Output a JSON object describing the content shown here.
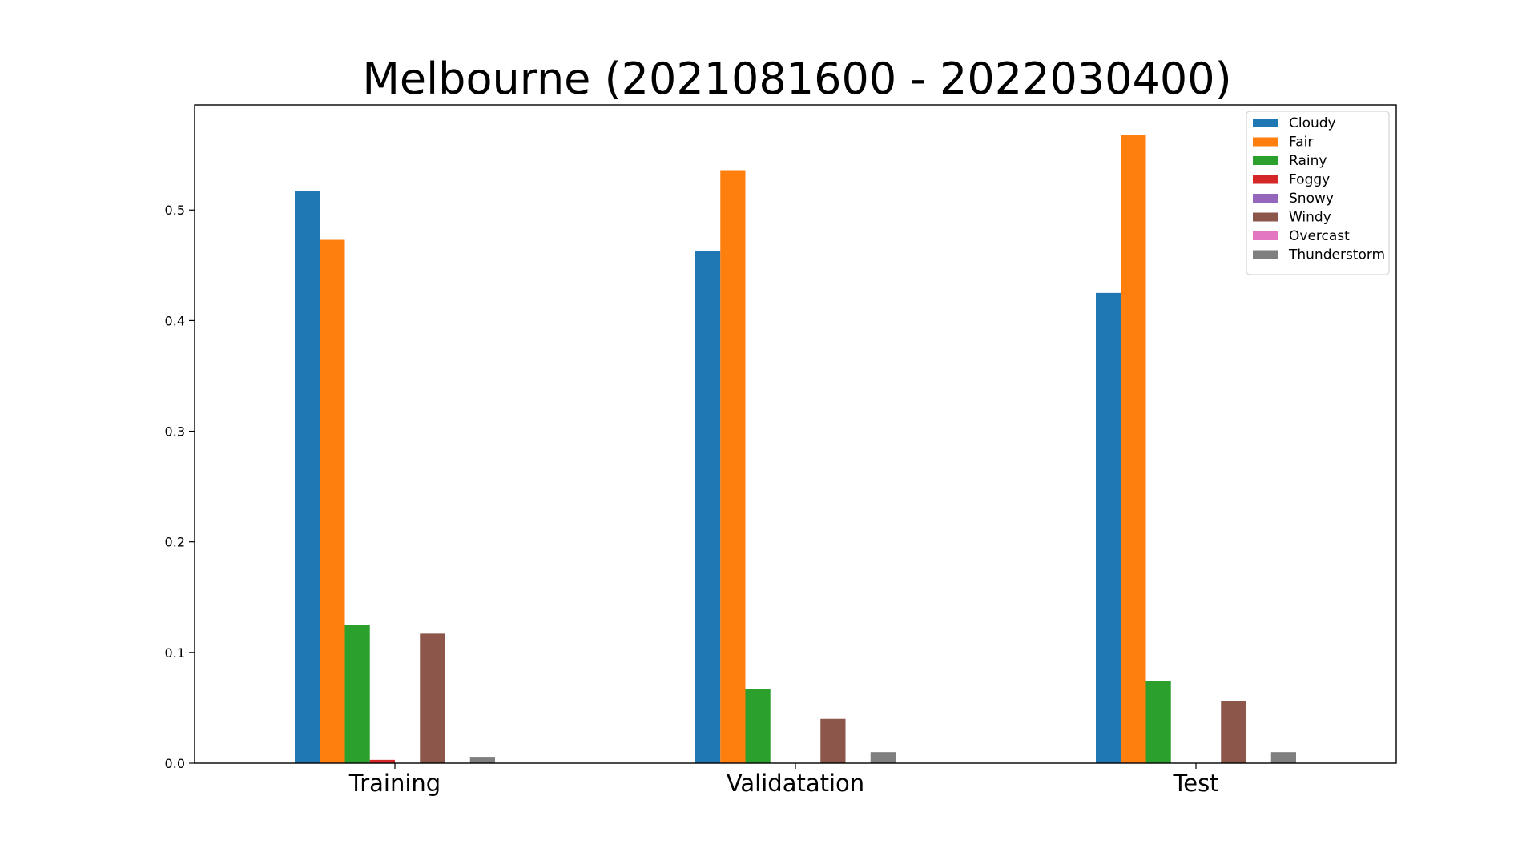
{
  "chart_data": {
    "type": "bar",
    "title": "Melbourne (2021081600 - 2022030400)",
    "xlabel": "",
    "ylabel": "",
    "categories": [
      "Training",
      "Validatation",
      "Test"
    ],
    "ylim": [
      0,
      0.595
    ],
    "yticks": [
      0.0,
      0.1,
      0.2,
      0.3,
      0.4,
      0.5
    ],
    "ytick_labels": [
      "0.0",
      "0.1",
      "0.2",
      "0.3",
      "0.4",
      "0.5"
    ],
    "grid": false,
    "legend_position": "top-right",
    "series": [
      {
        "name": "Cloudy",
        "color": "#1f77b4",
        "values": [
          0.517,
          0.463,
          0.425
        ]
      },
      {
        "name": "Fair",
        "color": "#ff7f0e",
        "values": [
          0.473,
          0.536,
          0.568
        ]
      },
      {
        "name": "Rainy",
        "color": "#2ca02c",
        "values": [
          0.125,
          0.067,
          0.074
        ]
      },
      {
        "name": "Foggy",
        "color": "#d62728",
        "values": [
          0.003,
          0.0,
          0.0
        ]
      },
      {
        "name": "Snowy",
        "color": "#9467bd",
        "values": [
          0.0,
          0.0,
          0.0
        ]
      },
      {
        "name": "Windy",
        "color": "#8c564b",
        "values": [
          0.117,
          0.04,
          0.056
        ]
      },
      {
        "name": "Overcast",
        "color": "#e377c2",
        "values": [
          0.0,
          0.0,
          0.0
        ]
      },
      {
        "name": "Thunderstorm",
        "color": "#7f7f7f",
        "values": [
          0.005,
          0.01,
          0.01
        ]
      }
    ]
  }
}
